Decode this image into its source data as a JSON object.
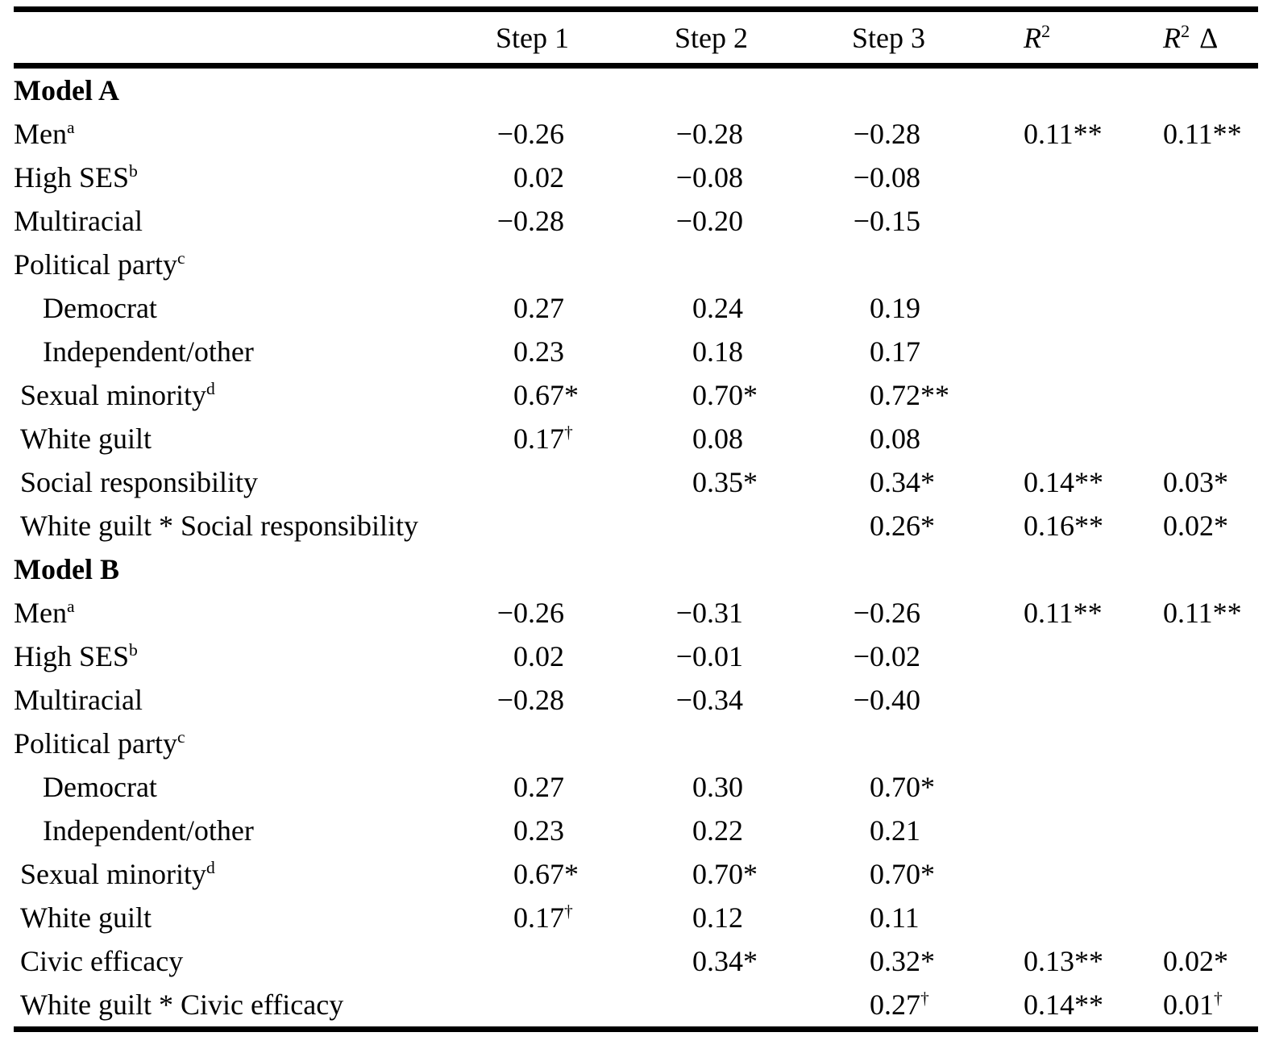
{
  "header": {
    "step1": "Step 1",
    "step2": "Step 2",
    "step3": "Step 3",
    "r_letter": "R",
    "r_sup": "2",
    "delta": "Δ"
  },
  "rows": [
    {
      "type": "section",
      "label": "Model A"
    },
    {
      "label": "Men",
      "sup": "a",
      "indent": 0,
      "cells": [
        {
          "s": "−",
          "v": "0.26"
        },
        {
          "s": "−",
          "v": "0.28"
        },
        {
          "s": "−",
          "v": "0.28"
        },
        {
          "v": "0.11",
          "a": "**"
        },
        {
          "v": "0.11",
          "a": "**"
        }
      ]
    },
    {
      "label": "High SES",
      "sup": "b",
      "indent": 0,
      "cells": [
        {
          "v": "0.02"
        },
        {
          "s": "−",
          "v": "0.08"
        },
        {
          "s": "−",
          "v": "0.08"
        },
        null,
        null
      ]
    },
    {
      "label": "Multiracial",
      "indent": 0,
      "cells": [
        {
          "s": "−",
          "v": "0.28"
        },
        {
          "s": "−",
          "v": "0.20"
        },
        {
          "s": "−",
          "v": "0.15"
        },
        null,
        null
      ]
    },
    {
      "label": "Political party",
      "sup": "c",
      "indent": 0,
      "cells": [
        null,
        null,
        null,
        null,
        null
      ]
    },
    {
      "label": "Democrat",
      "indent": 2,
      "cells": [
        {
          "v": "0.27"
        },
        {
          "v": "0.24"
        },
        {
          "v": "0.19"
        },
        null,
        null
      ]
    },
    {
      "label": "Independent/other",
      "indent": 2,
      "cells": [
        {
          "v": "0.23"
        },
        {
          "v": "0.18"
        },
        {
          "v": "0.17"
        },
        null,
        null
      ]
    },
    {
      "label": "Sexual minority",
      "sup": "d",
      "indent": 1,
      "cells": [
        {
          "v": "0.67",
          "a": "*"
        },
        {
          "v": "0.70",
          "a": "*"
        },
        {
          "v": "0.72",
          "a": "**"
        },
        null,
        null
      ]
    },
    {
      "label": "White guilt",
      "indent": 1,
      "cells": [
        {
          "v": "0.17",
          "d": "†"
        },
        {
          "v": "0.08"
        },
        {
          "v": "0.08"
        },
        null,
        null
      ]
    },
    {
      "label": "Social responsibility",
      "indent": 1,
      "cells": [
        null,
        {
          "v": "0.35",
          "a": "*"
        },
        {
          "v": "0.34",
          "a": "*"
        },
        {
          "v": "0.14",
          "a": "**"
        },
        {
          "v": "0.03",
          "a": "*"
        }
      ]
    },
    {
      "label": "White guilt * Social responsibility",
      "indent": 1,
      "cells": [
        null,
        null,
        {
          "v": "0.26",
          "a": "*"
        },
        {
          "v": "0.16",
          "a": "**"
        },
        {
          "v": "0.02",
          "a": "*"
        }
      ]
    },
    {
      "type": "section",
      "label": "Model B"
    },
    {
      "label": "Men",
      "sup": "a",
      "indent": 0,
      "cells": [
        {
          "s": "−",
          "v": "0.26"
        },
        {
          "s": "−",
          "v": "0.31"
        },
        {
          "s": "−",
          "v": "0.26"
        },
        {
          "v": "0.11",
          "a": "**"
        },
        {
          "v": "0.11",
          "a": "**"
        }
      ]
    },
    {
      "label": "High SES",
      "sup": "b",
      "indent": 0,
      "cells": [
        {
          "v": "0.02"
        },
        {
          "s": "−",
          "v": "0.01"
        },
        {
          "s": "−",
          "v": "0.02"
        },
        null,
        null
      ]
    },
    {
      "label": "Multiracial",
      "indent": 0,
      "cells": [
        {
          "s": "−",
          "v": "0.28"
        },
        {
          "s": "−",
          "v": "0.34"
        },
        {
          "s": "−",
          "v": "0.40"
        },
        null,
        null
      ]
    },
    {
      "label": "Political party",
      "sup": "c",
      "indent": 0,
      "cells": [
        null,
        null,
        null,
        null,
        null
      ]
    },
    {
      "label": "Democrat",
      "indent": 2,
      "cells": [
        {
          "v": "0.27"
        },
        {
          "v": "0.30"
        },
        {
          "v": "0.70",
          "a": "*"
        },
        null,
        null
      ]
    },
    {
      "label": "Independent/other",
      "indent": 2,
      "cells": [
        {
          "v": "0.23"
        },
        {
          "v": "0.22"
        },
        {
          "v": "0.21"
        },
        null,
        null
      ]
    },
    {
      "label": "Sexual minority",
      "sup": "d",
      "indent": 1,
      "cells": [
        {
          "v": "0.67",
          "a": "*"
        },
        {
          "v": "0.70",
          "a": "*"
        },
        {
          "v": "0.70",
          "a": "*"
        },
        null,
        null
      ]
    },
    {
      "label": "White guilt",
      "indent": 1,
      "cells": [
        {
          "v": "0.17",
          "d": "†"
        },
        {
          "v": "0.12"
        },
        {
          "v": "0.11"
        },
        null,
        null
      ]
    },
    {
      "label": "Civic efficacy",
      "indent": 1,
      "cells": [
        null,
        {
          "v": "0.34",
          "a": "*"
        },
        {
          "v": "0.32",
          "a": "*"
        },
        {
          "v": "0.13",
          "a": "**"
        },
        {
          "v": "0.02",
          "a": "*"
        }
      ]
    },
    {
      "label": "White guilt * Civic efficacy",
      "indent": 1,
      "cells": [
        null,
        null,
        {
          "v": "0.27",
          "d": "†"
        },
        {
          "v": "0.14",
          "a": "**"
        },
        {
          "v": "0.01",
          "d": "†"
        }
      ]
    }
  ]
}
